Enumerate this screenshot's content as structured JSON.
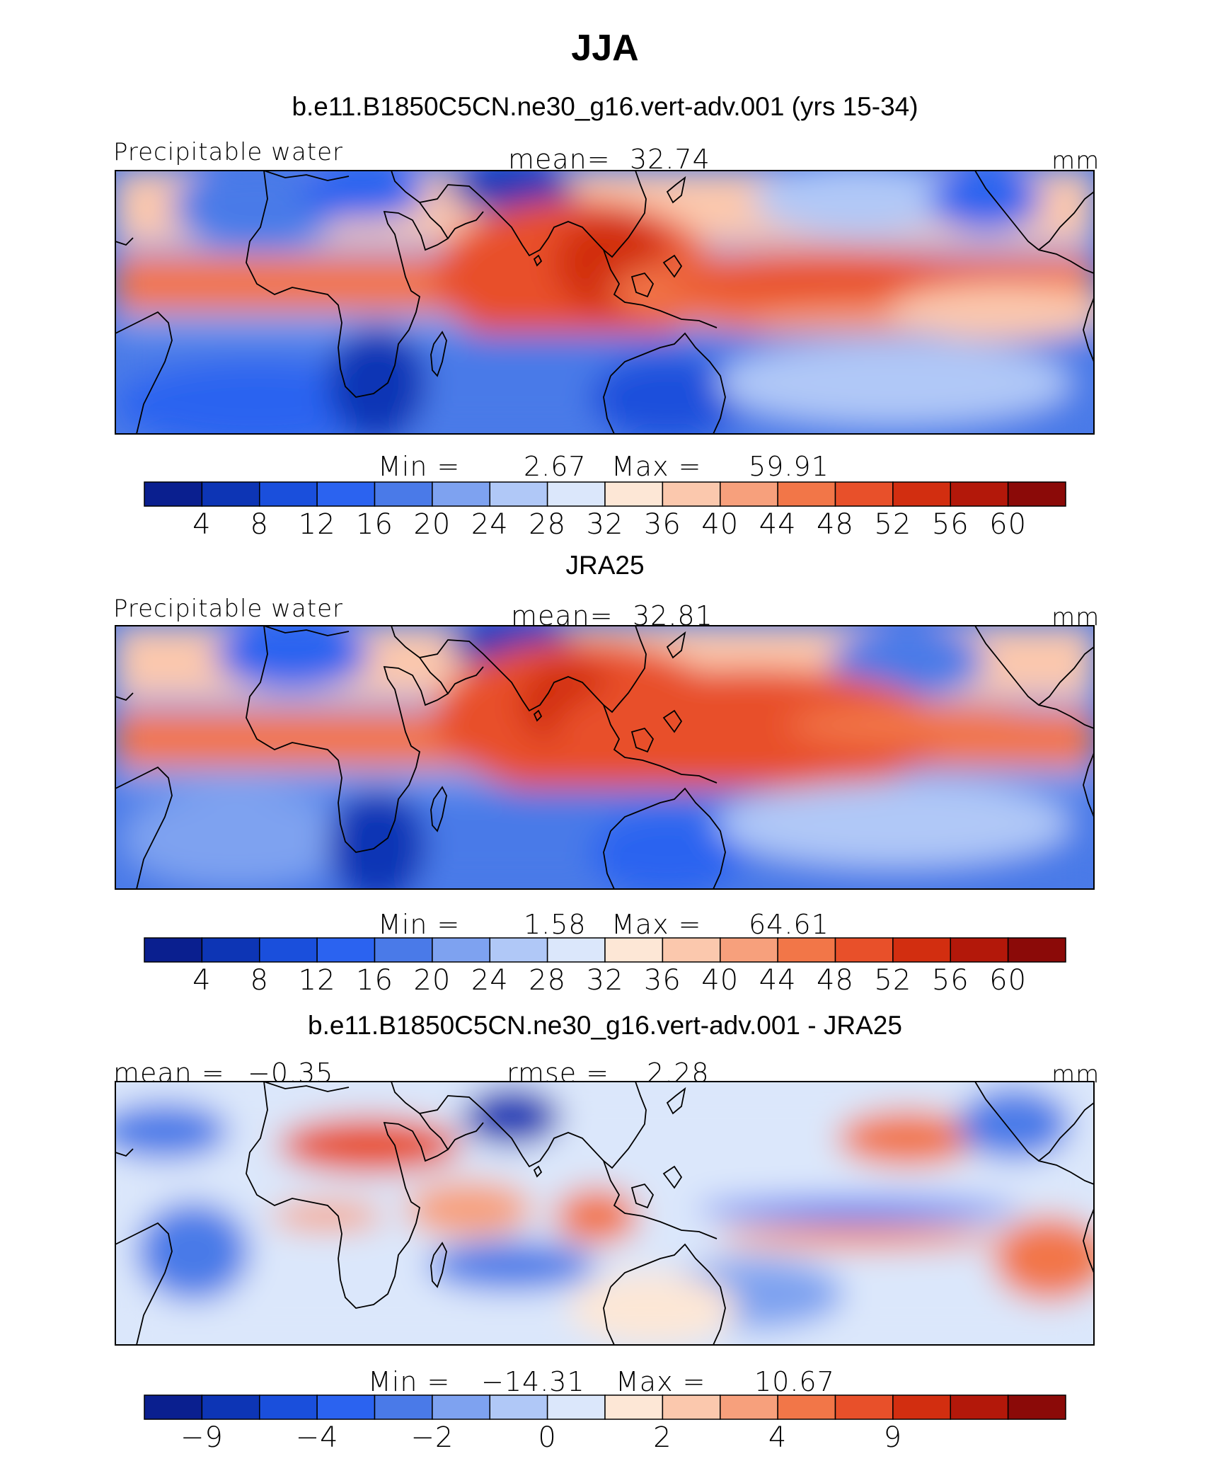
{
  "chart_data": [
    {
      "type": "heatmap",
      "season_title": "JJA",
      "title": "b.e11.B1850C5CN.ne30_g16.vert-adv.001 (yrs 15-34)",
      "variable": "Precipitable water",
      "units": "mm",
      "mean_label": "mean=",
      "mean": "32.74",
      "min_label": "Min  =",
      "min": "2.67",
      "max_label": "Max  =",
      "max": "59.91",
      "colorbar_levels": [
        4,
        8,
        12,
        16,
        20,
        24,
        28,
        32,
        36,
        40,
        44,
        48,
        52,
        56,
        60
      ],
      "colorbar_tick_labels": [
        "4",
        "8",
        "12",
        "16",
        "20",
        "24",
        "28",
        "32",
        "36",
        "40",
        "44",
        "48",
        "52",
        "56",
        "60"
      ],
      "colors": [
        "#0a1f8f",
        "#0d35b5",
        "#1a4fdc",
        "#2b63f0",
        "#4a7ae8",
        "#7ea2f0",
        "#b0c8f7",
        "#dbe7fb",
        "#fde7d6",
        "#fbc8ad",
        "#f7a07c",
        "#f27648",
        "#e8502a",
        "#d22e10",
        "#b3180a",
        "#8b0a08"
      ]
    },
    {
      "type": "heatmap",
      "title": "JRA25",
      "variable": "Precipitable water",
      "units": "mm",
      "mean_label": "mean=",
      "mean": "32.81",
      "min_label": "Min  =",
      "min": "1.58",
      "max_label": "Max  =",
      "max": "64.61",
      "colorbar_levels": [
        4,
        8,
        12,
        16,
        20,
        24,
        28,
        32,
        36,
        40,
        44,
        48,
        52,
        56,
        60
      ],
      "colorbar_tick_labels": [
        "4",
        "8",
        "12",
        "16",
        "20",
        "24",
        "28",
        "32",
        "36",
        "40",
        "44",
        "48",
        "52",
        "56",
        "60"
      ],
      "colors": [
        "#0a1f8f",
        "#0d35b5",
        "#1a4fdc",
        "#2b63f0",
        "#4a7ae8",
        "#7ea2f0",
        "#b0c8f7",
        "#dbe7fb",
        "#fde7d6",
        "#fbc8ad",
        "#f7a07c",
        "#f27648",
        "#e8502a",
        "#d22e10",
        "#b3180a",
        "#8b0a08"
      ]
    },
    {
      "type": "heatmap",
      "title": "b.e11.B1850C5CN.ne30_g16.vert-adv.001 - JRA25",
      "units": "mm",
      "mean_label": "mean =",
      "mean": "−0.35",
      "rmse_label": "rmse =",
      "rmse": "2.28",
      "min_label": "Min  =",
      "min": "−14.31",
      "max_label": "Max  =",
      "max": "10.67",
      "colorbar_levels": [
        -9,
        -6,
        -4,
        -3,
        -2,
        -1,
        0,
        1,
        2,
        3,
        4,
        6,
        9
      ],
      "colorbar_tick_labels": [
        "−9",
        "−4",
        "−2",
        "0",
        "2",
        "4",
        "9"
      ],
      "colors": [
        "#0a1f8f",
        "#0d35b5",
        "#1a4fdc",
        "#2b63f0",
        "#4a7ae8",
        "#7ea2f0",
        "#b0c8f7",
        "#dbe7fb",
        "#fde7d6",
        "#fbc8ad",
        "#f7a07c",
        "#f27648",
        "#e8502a",
        "#d22e10",
        "#b3180a",
        "#8b0a08"
      ]
    }
  ]
}
